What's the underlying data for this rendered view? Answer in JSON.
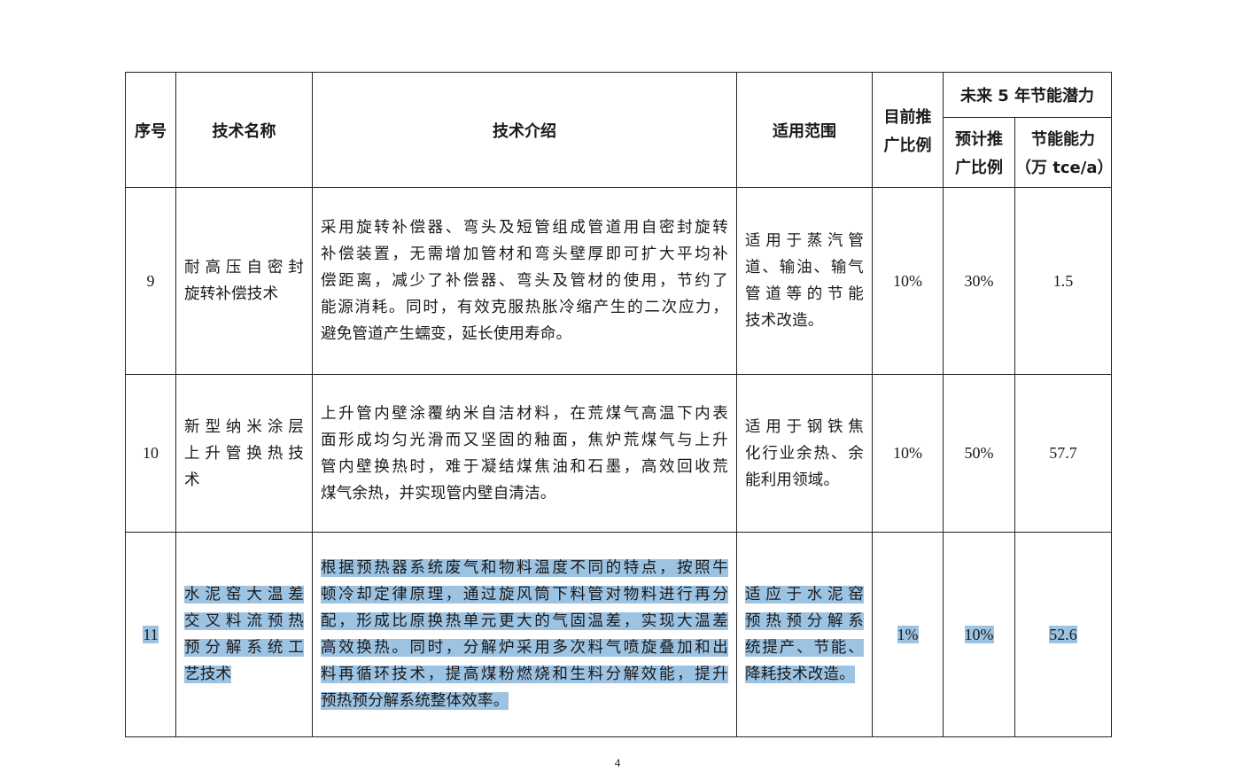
{
  "table": {
    "headers": {
      "seq": "序号",
      "name": "技术名称",
      "intro": "技术介绍",
      "scope": "适用范围",
      "current": [
        "目前推",
        "广比例"
      ],
      "future_group": "未来 5 年节能潜力",
      "future_ratio": [
        "预计推",
        "广比例"
      ],
      "capacity": [
        "节能能力",
        "（万 tce/a）"
      ]
    },
    "rows": [
      {
        "seq": "9",
        "name": [
          "耐高压自密封",
          "旋转补偿技术"
        ],
        "intro": [
          "采用旋转补偿器、弯头及短管组成管道用自密封旋转",
          "补偿装置，无需增加管材和弯头壁厚即可扩大平均补",
          "偿距离，减少了补偿器、弯头及管材的使用，节约了",
          "能源消耗。同时，有效克服热胀冷缩产生的二次应力，",
          "避免管道产生蠕变，延长使用寿命。"
        ],
        "scope": [
          "适用于蒸汽管",
          "道、输油、输气",
          "管道等的节能",
          "技术改造。"
        ],
        "current": "10%",
        "future_ratio": "30%",
        "capacity": "1.5",
        "highlighted": false
      },
      {
        "seq": "10",
        "name": [
          "新型纳米涂层",
          "上升管换热技",
          "术"
        ],
        "intro": [
          "上升管内壁涂覆纳米自洁材料，在荒煤气高温下内表",
          "面形成均匀光滑而又坚固的釉面，焦炉荒煤气与上升",
          "管内壁换热时，难于凝结煤焦油和石墨，高效回收荒",
          "煤气余热，并实现管内壁自清洁。"
        ],
        "scope": [
          "适用于钢铁焦",
          "化行业余热、余",
          "能利用领域。"
        ],
        "current": "10%",
        "future_ratio": "50%",
        "capacity": "57.7",
        "highlighted": false
      },
      {
        "seq": "11",
        "name": [
          "水泥窑大温差",
          "交叉料流预热",
          "预分解系统工",
          "艺技术"
        ],
        "intro": [
          "根据预热器系统废气和物料温度不同的特点，按照牛",
          "顿冷却定律原理，通过旋风筒下料管对物料进行再分",
          "配，形成比原换热单元更大的气固温差，实现大温差",
          "高效换热。同时，分解炉采用多次料气喷旋叠加和出",
          "料再循环技术，提高煤粉燃烧和生料分解效能，提升",
          "预热预分解系统整体效率。"
        ],
        "scope": [
          "适应于水泥窑",
          "预热预分解系",
          "统提产、节能、",
          "降耗技术改造。"
        ],
        "current": "1%",
        "future_ratio": "10%",
        "capacity": "52.6",
        "highlighted": true
      }
    ]
  },
  "page_number": "4",
  "colors": {
    "highlight": "#9dc3e3",
    "border": "#222222"
  }
}
